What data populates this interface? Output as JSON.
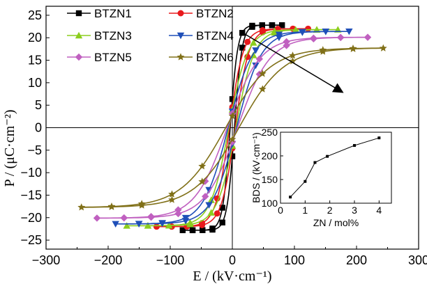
{
  "chart_data": [
    {
      "type": "line",
      "subtype": "hysteresis",
      "xlabel": "E / (kV·cm⁻¹)",
      "ylabel": "P / (μC·cm⁻²)",
      "xlim": [
        -300,
        300
      ],
      "ylim": [
        -27,
        27
      ],
      "xticks": [
        "−300",
        "−200",
        "−100",
        "0",
        "100",
        "200",
        "300"
      ],
      "yticks": [
        "25",
        "20",
        "15",
        "10",
        "5",
        "0",
        "−5",
        "−10",
        "−15",
        "−20",
        "−25"
      ],
      "legend_position": "top-left",
      "annotation": "arrow indicating trend from BTZN1 to BTZN6",
      "series": [
        {
          "name": "BTZN1",
          "color": "#000000",
          "marker": "square",
          "Emax": 80,
          "Pmax": 22.8,
          "k": 12
        },
        {
          "name": "BTZN2",
          "color": "#e8191c",
          "marker": "circle",
          "Emax": 122,
          "Pmax": 22.0,
          "k": 22
        },
        {
          "name": "BTZN3",
          "color": "#8ccd1e",
          "marker": "triangle-up",
          "Emax": 170,
          "Pmax": 21.8,
          "k": 30
        },
        {
          "name": "BTZN4",
          "color": "#1f4fb8",
          "marker": "triangle-down",
          "Emax": 188,
          "Pmax": 21.4,
          "k": 40
        },
        {
          "name": "BTZN5",
          "color": "#c060c0",
          "marker": "diamond",
          "Emax": 218,
          "Pmax": 20.1,
          "k": 52
        },
        {
          "name": "BTZN6",
          "color": "#807018",
          "marker": "star",
          "Emax": 243,
          "Pmax": 17.7,
          "k": 72
        }
      ]
    },
    {
      "type": "line",
      "inset": true,
      "xlabel": "ZN / mol%",
      "ylabel": "BDS / (kV·cm⁻¹)",
      "xlim": [
        0,
        4.5
      ],
      "ylim": [
        100,
        250
      ],
      "xticks": [
        "0",
        "1",
        "2",
        "3",
        "4"
      ],
      "yticks": [
        "250",
        "200",
        "150",
        "100"
      ],
      "x": [
        0.4,
        1.0,
        1.4,
        1.9,
        3.0,
        4.0
      ],
      "y": [
        113,
        146,
        186,
        199,
        222,
        238
      ]
    }
  ]
}
